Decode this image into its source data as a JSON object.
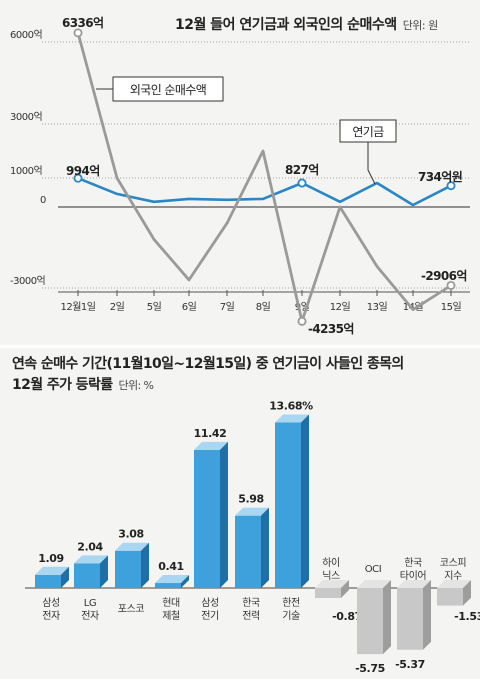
{
  "chart_data": [
    {
      "type": "line",
      "title": "12월 들어 연기금과 외국인의 순매수액",
      "unit": "단위: 원",
      "categories": [
        "12월1일",
        "2일",
        "5일",
        "6일",
        "7일",
        "8일",
        "9일",
        "12일",
        "13일",
        "14일",
        "15일"
      ],
      "yticks": [
        "6000억",
        "3000억",
        "1000억",
        "0",
        "-3000억"
      ],
      "ylim": [
        -4235,
        6336
      ],
      "series": [
        {
          "name": "연기금",
          "color": "#2a86c5",
          "values": [
            994,
            450,
            180,
            280,
            250,
            280,
            827,
            180,
            827,
            70,
            734
          ]
        },
        {
          "name": "외국인 순매수액",
          "color": "#9a9a9a",
          "values": [
            6336,
            1000,
            -1200,
            -2700,
            -600,
            2000,
            -4235,
            0,
            -2200,
            -3800,
            -2906
          ]
        }
      ],
      "annotations": {
        "first_foreign": "6336억",
        "first_pension": "994억",
        "pension_9": "827억",
        "last_pension": "734억원",
        "last_foreign": "-2906억",
        "min_foreign": "-4235억"
      },
      "legend": {
        "foreign": "외국인 순매수액",
        "pension": "연기금"
      }
    },
    {
      "type": "bar",
      "title_line1": "연속 순매수 기간(11월10일~12월15일) 중 연기금이 사들인 종목의",
      "title_line2": "12월 주가 등락률",
      "unit": "단위: %",
      "categories": [
        {
          "line1": "삼성",
          "line2": "전자",
          "value": 1.09,
          "label": "1.09"
        },
        {
          "line1": "LG",
          "line2": "전자",
          "value": 2.04,
          "label": "2.04"
        },
        {
          "line1": "포스코",
          "line2": "",
          "value": 3.08,
          "label": "3.08"
        },
        {
          "line1": "현대",
          "line2": "제철",
          "value": 0.41,
          "label": "0.41"
        },
        {
          "line1": "삼성",
          "line2": "전기",
          "value": 11.42,
          "label": "11.42"
        },
        {
          "line1": "한국",
          "line2": "전력",
          "value": 5.98,
          "label": "5.98"
        },
        {
          "line1": "한전",
          "line2": "기술",
          "value": 13.68,
          "label": "13.68%"
        },
        {
          "line1": "하이",
          "line2": "닉스",
          "value": -0.87,
          "label": "-0.87"
        },
        {
          "line1": "OCI",
          "line2": "",
          "value": -5.75,
          "label": "-5.75"
        },
        {
          "line1": "한국",
          "line2": "타이어",
          "value": -5.37,
          "label": "-5.37"
        },
        {
          "line1": "코스피",
          "line2": "지수",
          "value": -1.53,
          "label": "-1.53"
        }
      ],
      "colors": {
        "positive": "#3fa1db",
        "negative": "#c8c8c8"
      }
    }
  ]
}
